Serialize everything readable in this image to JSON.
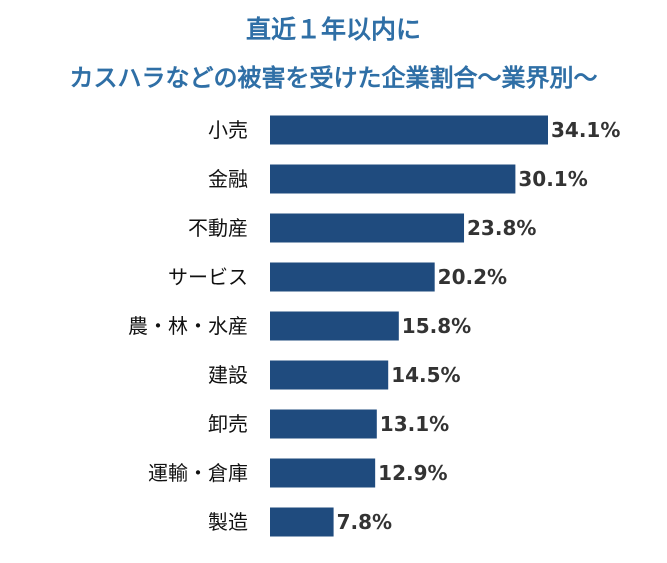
{
  "chart_data": {
    "type": "bar",
    "orientation": "horizontal",
    "title": "直近１年以内に",
    "subtitle": "カスハラなどの被害を受けた企業割合～業界別～",
    "categories": [
      "小売",
      "金融",
      "不動産",
      "サービス",
      "農・林・水産",
      "建設",
      "卸売",
      "運輸・倉庫",
      "製造"
    ],
    "values": [
      34.1,
      30.1,
      23.8,
      20.2,
      15.8,
      14.5,
      13.1,
      12.9,
      7.8
    ],
    "value_labels": [
      "34.1%",
      "30.1%",
      "23.8%",
      "20.2%",
      "15.8%",
      "14.5%",
      "13.1%",
      "12.9%",
      "7.8%"
    ],
    "unit": "%",
    "xlim": [
      0,
      34.1
    ],
    "bar_color": "#1f4b7e",
    "title_color": "#2f6fa6",
    "grid": false,
    "legend": "none"
  }
}
